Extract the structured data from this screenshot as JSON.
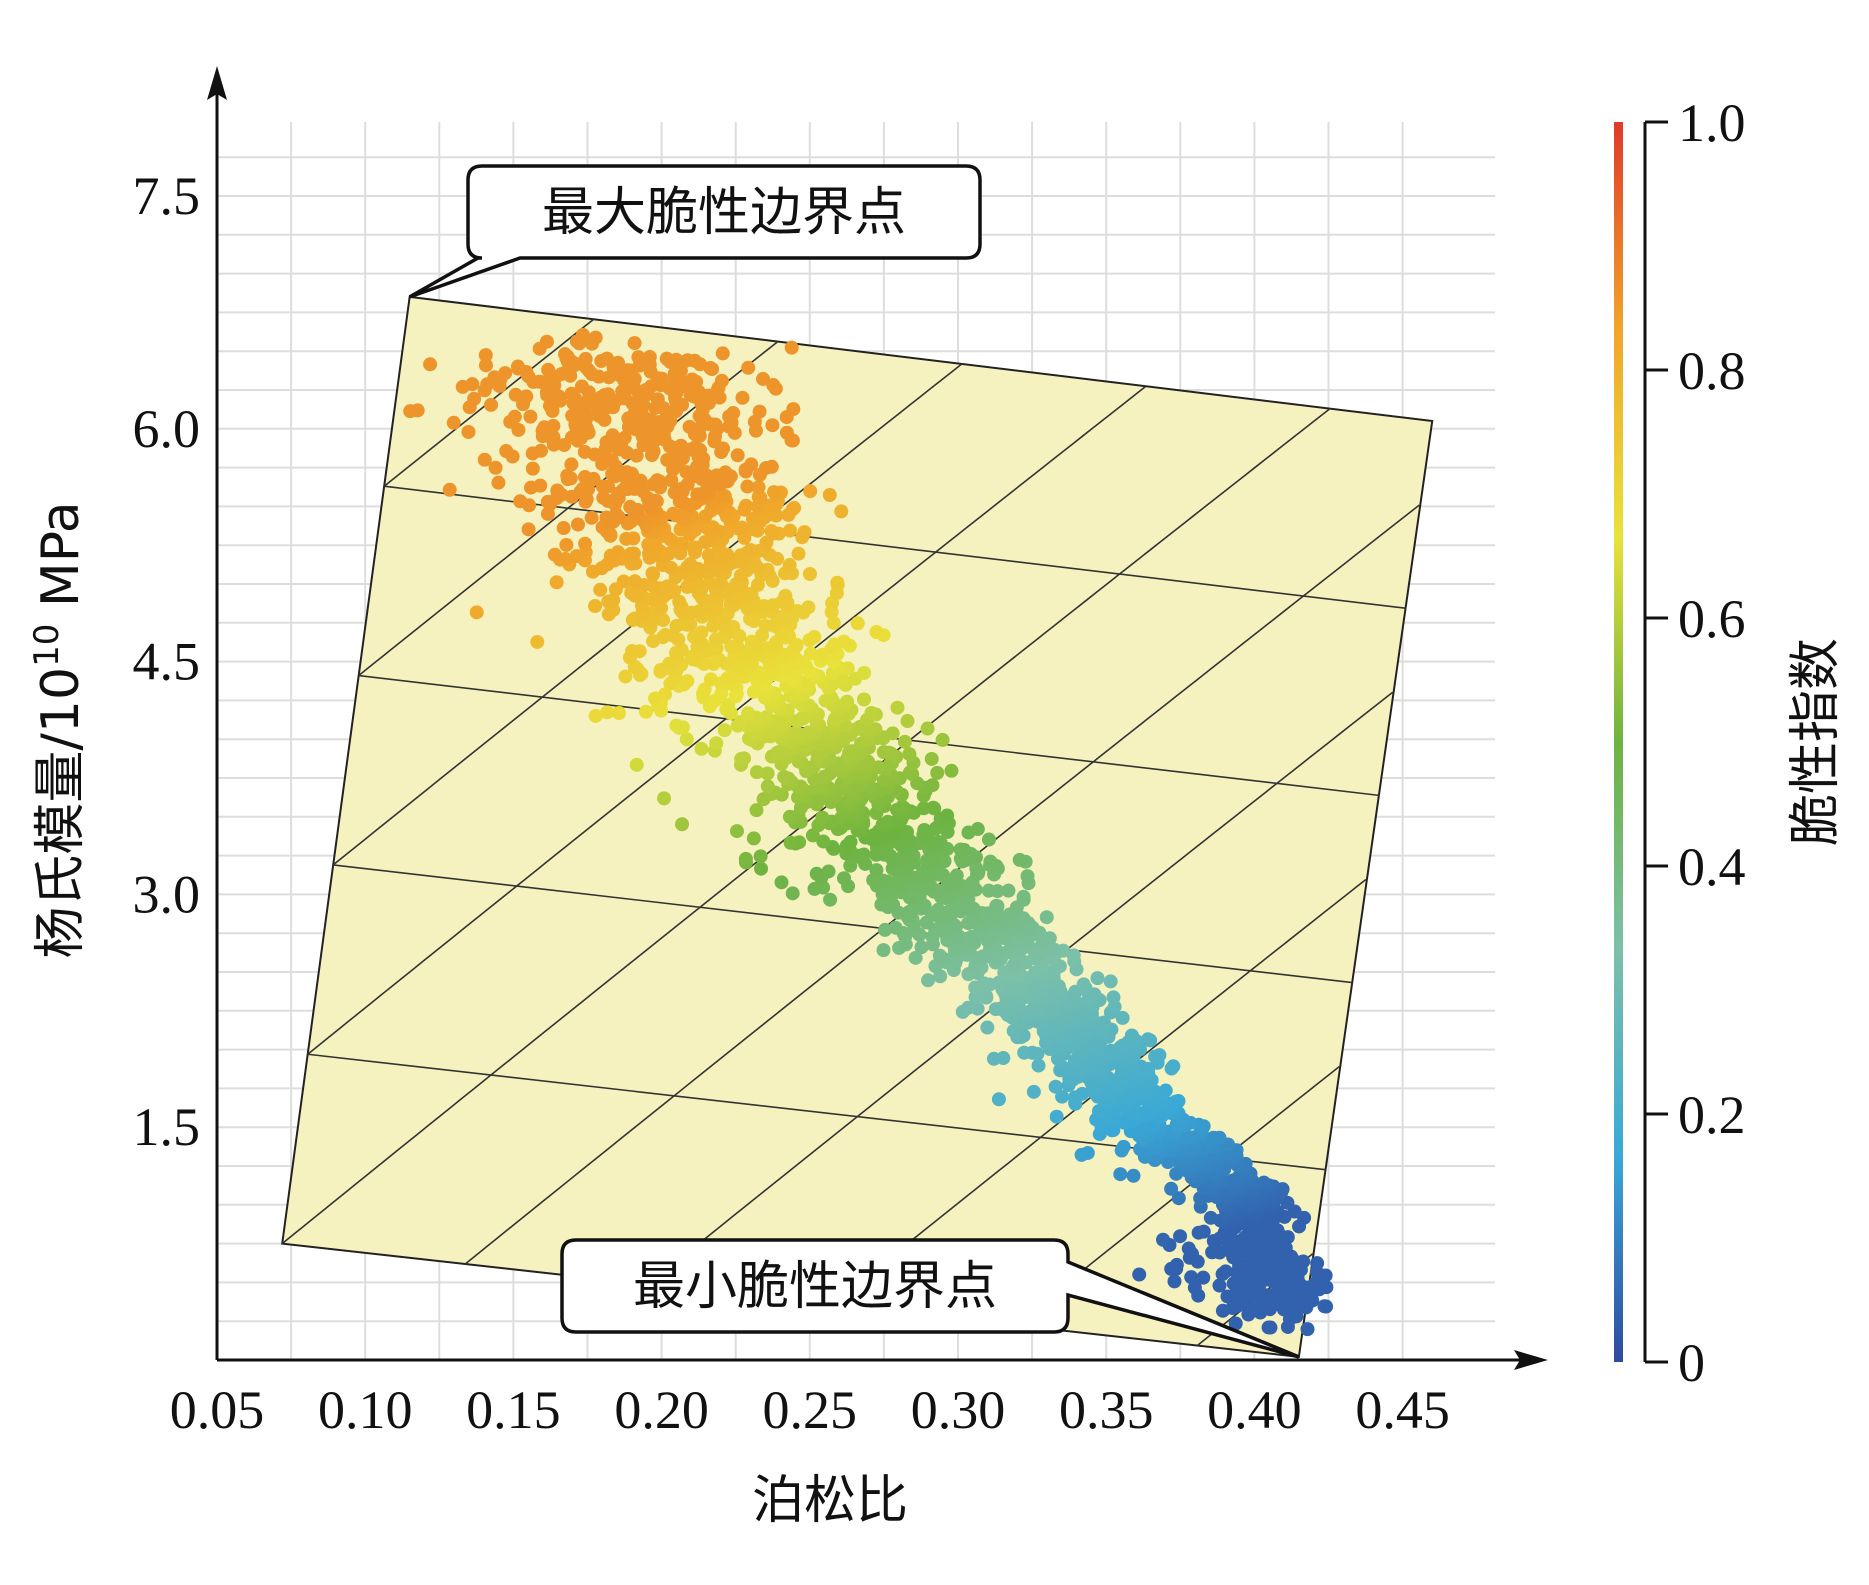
{
  "chart_data": {
    "type": "scatter",
    "xlabel": "泊松比",
    "ylabel": "杨氏模量/10",
    "ylabel_exponent": "10",
    "ylabel_unit": " MPa",
    "xlim": [
      0.05,
      0.45
    ],
    "ylim": [
      0,
      8.2
    ],
    "xticks": [
      "0.05",
      "0.10",
      "0.15",
      "0.20",
      "0.25",
      "0.30",
      "0.35",
      "0.40",
      "0.45"
    ],
    "yticks": [
      "1.5",
      "3.0",
      "4.5",
      "6.0",
      "7.5"
    ],
    "grid": true,
    "colorbar": {
      "label": "脆性指数",
      "ticks": [
        "0",
        "0.2",
        "0.4",
        "0.6",
        "0.8",
        "1.0"
      ],
      "range": [
        0,
        1
      ],
      "colormap": [
        "#2f4aa0",
        "#3aa9d6",
        "#7cc0a8",
        "#6db33f",
        "#e9e23a",
        "#f0a52a",
        "#e03a2a"
      ]
    },
    "plane_corners": [
      {
        "x": 0.115,
        "y": 6.85
      },
      {
        "x": 0.46,
        "y": 6.05
      },
      {
        "x": 0.415,
        "y": 0.02
      },
      {
        "x": 0.072,
        "y": 0.75
      }
    ],
    "annotations": [
      {
        "text": "最大脆性边界点",
        "x": 0.115,
        "y": 6.85
      },
      {
        "text": "最小脆性边界点",
        "x": 0.415,
        "y": 0.02
      }
    ],
    "points_centerline": [
      {
        "x": 0.183,
        "y": 6.55
      },
      {
        "x": 0.2,
        "y": 5.8
      },
      {
        "x": 0.215,
        "y": 5.0
      },
      {
        "x": 0.24,
        "y": 4.3
      },
      {
        "x": 0.27,
        "y": 3.6
      },
      {
        "x": 0.3,
        "y": 2.95
      },
      {
        "x": 0.335,
        "y": 2.2
      },
      {
        "x": 0.365,
        "y": 1.55
      },
      {
        "x": 0.395,
        "y": 1.1
      },
      {
        "x": 0.41,
        "y": 0.3
      }
    ],
    "points_summary": {
      "x_range": [
        0.13,
        0.41
      ],
      "y_range": [
        0.28,
        6.6
      ],
      "brittleness_range": [
        0.05,
        0.85
      ]
    }
  }
}
